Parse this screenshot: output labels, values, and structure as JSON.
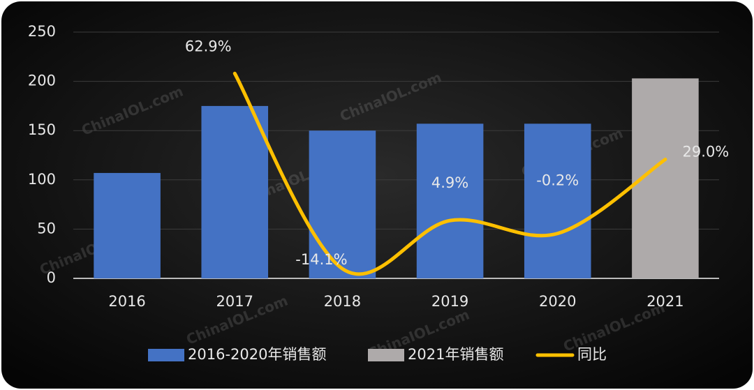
{
  "chart_data": {
    "type": "bar",
    "categories": [
      "2016",
      "2017",
      "2018",
      "2019",
      "2020",
      "2021"
    ],
    "series": [
      {
        "name": "2016-2020年销售额",
        "color": "#4472c4",
        "values": [
          107,
          175,
          150,
          157,
          157,
          null
        ]
      },
      {
        "name": "2021年销售额",
        "color": "#aeaaaa",
        "values": [
          null,
          null,
          null,
          null,
          null,
          203
        ]
      },
      {
        "name": "同比",
        "color": "#ffc000",
        "type": "line",
        "axis": "y2",
        "values": [
          null,
          62.9,
          -14.1,
          4.9,
          -0.2,
          29.0
        ],
        "value_labels": [
          null,
          "62.9%",
          "-14.1%",
          "4.9%",
          "-0.2%",
          "29.0%"
        ]
      }
    ],
    "ylim": [
      0,
      250
    ],
    "yticks": [
      0,
      50,
      100,
      150,
      200,
      250
    ],
    "y2lim": [
      -17.9,
      79.2
    ],
    "grid": true,
    "legend": "bottom",
    "watermark": "ChinaIOL.com"
  }
}
